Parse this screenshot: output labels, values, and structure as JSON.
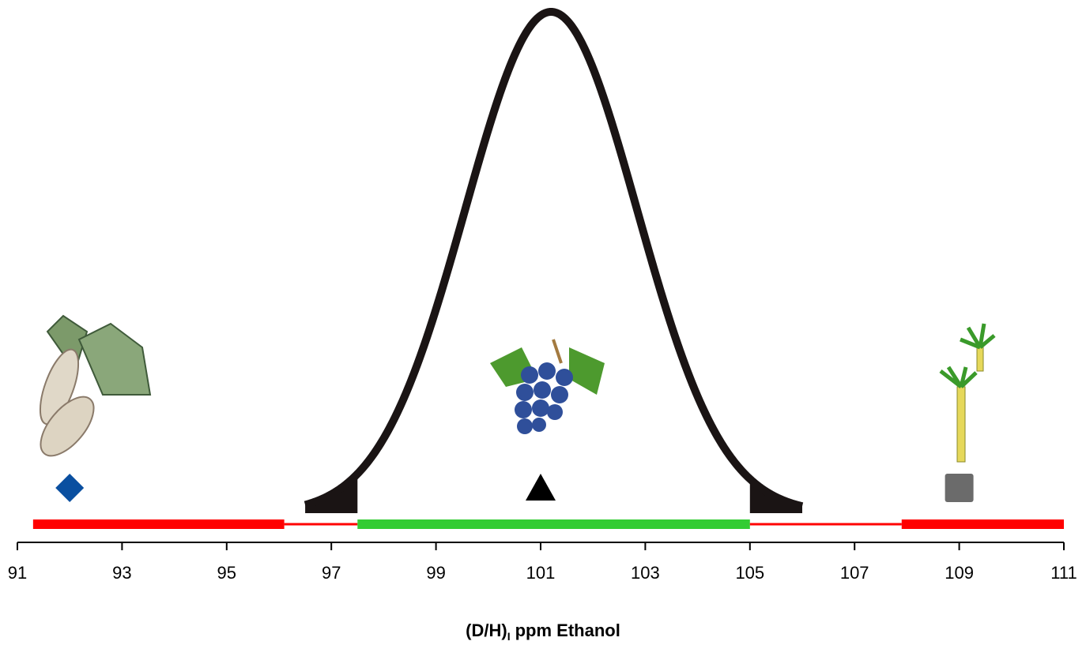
{
  "chart_data": {
    "type": "range",
    "xlim": [
      91,
      111
    ],
    "xticks": [
      91,
      93,
      95,
      97,
      99,
      101,
      103,
      105,
      107,
      109,
      111
    ],
    "xlabel": {
      "main": "(D/H)",
      "sub": "I",
      "rest": "ppm Ethanol"
    },
    "curve": {
      "mean": 101.2,
      "sd": 1.64,
      "range": [
        96.5,
        106
      ],
      "tails": [
        [
          96.5,
          97.5
        ],
        [
          105,
          106
        ]
      ],
      "color": "#1a1414"
    },
    "ranges": [
      {
        "start": 91.3,
        "end": 96.1,
        "color": "#ff0000",
        "thick": true
      },
      {
        "start": 96.1,
        "end": 97.5,
        "color": "#ff0000",
        "thick": false
      },
      {
        "start": 97.5,
        "end": 105,
        "color": "#33cc33",
        "thick": true
      },
      {
        "start": 105,
        "end": 107.9,
        "color": "#ff0000",
        "thick": false
      },
      {
        "start": 107.9,
        "end": 111,
        "color": "#ff0000",
        "thick": true
      }
    ],
    "markers": [
      {
        "x": 92,
        "shape": "diamond",
        "color": "#0a4fa0"
      },
      {
        "x": 101,
        "shape": "triangle",
        "color": "#000000"
      },
      {
        "x": 109,
        "shape": "square",
        "color": "#6b6b6b"
      }
    ]
  }
}
